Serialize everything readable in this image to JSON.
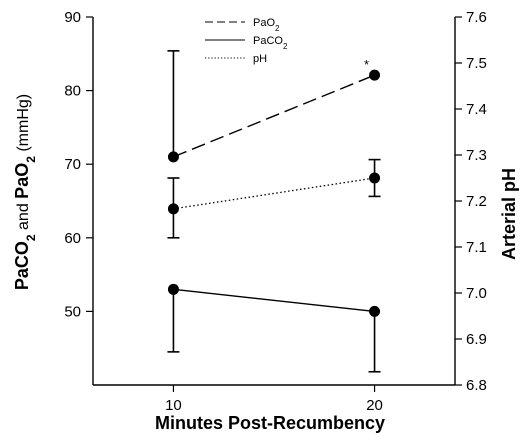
{
  "chart_data": {
    "type": "line",
    "xlabel": "Minutes Post-Recumbency",
    "ylabel_left": {
      "parts": [
        "PaCO",
        "2",
        " and ",
        "PaO",
        "2",
        " (mmHg)"
      ]
    },
    "ylabel_right": "Arterial pH",
    "x": [
      10,
      20
    ],
    "x_ticks": [
      "10",
      "20"
    ],
    "xlim": [
      6,
      24
    ],
    "ylim_left": [
      40,
      90
    ],
    "yticks_left": [
      50,
      60,
      70,
      80,
      90
    ],
    "ylim_right": [
      6.8,
      7.6
    ],
    "yticks_right": [
      6.8,
      6.9,
      7.0,
      7.1,
      7.2,
      7.3,
      7.4,
      7.5,
      7.6
    ],
    "series": [
      {
        "name": "PaO2",
        "legend_parts": [
          "PaO",
          "2"
        ],
        "axis": "left",
        "style": "dashed",
        "values": [
          71.0,
          82.1
        ],
        "error": [
          [
            71.0,
            85.4
          ],
          null
        ]
      },
      {
        "name": "PaCO2",
        "legend_parts": [
          "PaCO",
          "2"
        ],
        "axis": "left",
        "style": "solid",
        "values": [
          53.0,
          50.0
        ],
        "error": [
          [
            44.5,
            53.0
          ],
          [
            41.8,
            50.0
          ]
        ]
      },
      {
        "name": "pH",
        "legend_parts": [
          "pH"
        ],
        "axis": "right",
        "style": "dotted",
        "values": [
          7.183,
          7.25
        ],
        "error": [
          [
            7.12,
            7.25
          ],
          [
            7.21,
            7.29
          ]
        ]
      }
    ],
    "annotations": [
      {
        "text": "*",
        "series": "PaO2",
        "x": 20
      }
    ],
    "legend_position": "top-center"
  }
}
